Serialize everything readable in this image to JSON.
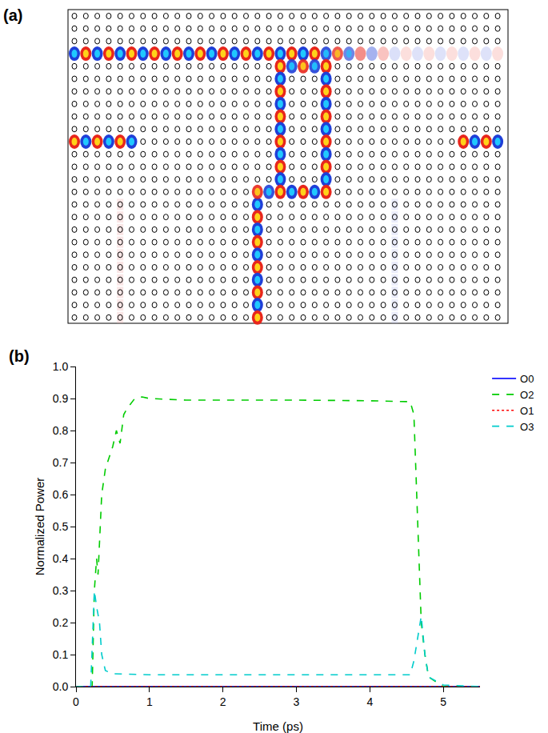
{
  "field_map": {
    "label": "(a)"
  },
  "chart_data": {
    "type": "line",
    "annotations": [
      "(b)"
    ],
    "x_label": "Time (ps)",
    "y_label": "Normalized Power",
    "xlim": [
      0,
      5.5
    ],
    "xticks": [
      0,
      1,
      2,
      3,
      4,
      5
    ],
    "ylim": [
      0,
      1
    ],
    "yticks": [
      {
        "value": 0,
        "label": "0.0"
      },
      {
        "value": 0.1,
        "label": "0.1"
      },
      {
        "value": 0.2,
        "label": "0.2"
      },
      {
        "value": 0.3,
        "label": "0.3"
      },
      {
        "value": 0.4,
        "label": "0.4"
      },
      {
        "value": 0.5,
        "label": "0.5"
      },
      {
        "value": 0.6,
        "label": "0.6"
      },
      {
        "value": 0.7,
        "label": "0.7"
      },
      {
        "value": 0.8,
        "label": "0.8"
      },
      {
        "value": 0.9,
        "label": "0.9"
      },
      {
        "value": 1,
        "label": "1.0"
      }
    ],
    "grid": false,
    "legend": "right",
    "series": [
      {
        "name": "O0",
        "color": "#0000ff",
        "line_style": "solid",
        "x": [
          0,
          5.5
        ],
        "values": [
          0,
          0
        ]
      },
      {
        "name": "O2",
        "color": "#00cc00",
        "line_style": "dash",
        "x": [
          0,
          0.22,
          0.25,
          0.28,
          0.3,
          0.35,
          0.4,
          0.5,
          0.55,
          0.6,
          0.65,
          0.7,
          0.8,
          0.9,
          1.0,
          1.5,
          2,
          3,
          4,
          4.55,
          4.6,
          4.65,
          4.7,
          4.75,
          4.8,
          5,
          5.5
        ],
        "values": [
          0,
          0,
          0.3,
          0.4,
          0.35,
          0.6,
          0.68,
          0.75,
          0.8,
          0.76,
          0.85,
          0.87,
          0.9,
          0.905,
          0.9,
          0.895,
          0.895,
          0.895,
          0.893,
          0.89,
          0.85,
          0.5,
          0.2,
          0.1,
          0.03,
          0,
          0
        ]
      },
      {
        "name": "O1",
        "color": "#ff0000",
        "line_style": "dot",
        "x": [
          0,
          5.5
        ],
        "values": [
          0,
          0
        ]
      },
      {
        "name": "O3",
        "color": "#00cccc",
        "line_style": "dash",
        "x": [
          0,
          0.2,
          0.25,
          0.28,
          0.32,
          0.35,
          0.4,
          0.5,
          1,
          2,
          3,
          4,
          4.55,
          4.6,
          4.65,
          4.7,
          4.75,
          4.8,
          5,
          5.5
        ],
        "values": [
          0,
          0,
          0.3,
          0.25,
          0.2,
          0.1,
          0.05,
          0.04,
          0.037,
          0.037,
          0.037,
          0.037,
          0.037,
          0.08,
          0.15,
          0.22,
          0.1,
          0.03,
          0.005,
          0
        ]
      }
    ]
  }
}
